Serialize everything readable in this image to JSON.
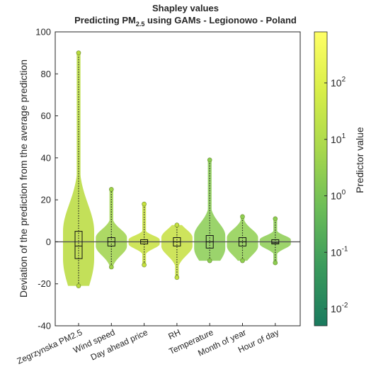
{
  "chart_data": {
    "type": "violin",
    "title": "Shapley values",
    "subtitle_main": "Predicting PM",
    "subtitle_sub": "2.5",
    "subtitle_rest": " using GAMs - Legionowo - Poland",
    "xlabel": "",
    "ylabel": "Deviation of the prediction from the average prediction",
    "ylim": [
      -40,
      100
    ],
    "yticks": [
      -40,
      -20,
      0,
      20,
      40,
      60,
      80,
      100
    ],
    "reference_line_y": 0,
    "grid": false,
    "categories": [
      "Zegrzynska PM2.5",
      "Wind speed",
      "Day ahead price",
      "RH",
      "Temperature",
      "Month of year",
      "Hour of day"
    ],
    "violins": [
      {
        "category": "Zegrzynska PM2.5",
        "min": -21,
        "q1": -8,
        "median": -2,
        "q3": 5,
        "max": 90,
        "color": "#b9da3c"
      },
      {
        "category": "Wind speed",
        "min": -12,
        "q1": -2,
        "median": 0,
        "q3": 2,
        "max": 25,
        "color": "#9fd24a"
      },
      {
        "category": "Day ahead price",
        "min": -11,
        "q1": -1,
        "median": 0,
        "q3": 1,
        "max": 18,
        "color": "#c7e03d"
      },
      {
        "category": "RH",
        "min": -17,
        "q1": -2,
        "median": 0,
        "q3": 2,
        "max": 8,
        "color": "#c5df3f"
      },
      {
        "category": "Temperature",
        "min": -9,
        "q1": -3,
        "median": 0,
        "q3": 3,
        "max": 39,
        "color": "#8acd52"
      },
      {
        "category": "Month of year",
        "min": -9,
        "q1": -2,
        "median": 0,
        "q3": 2,
        "max": 12,
        "color": "#8fcf50"
      },
      {
        "category": "Hour of day",
        "min": -10,
        "q1": -1,
        "median": -0.5,
        "q3": 1,
        "max": 11,
        "color": "#8ccd51"
      }
    ],
    "colorbar": {
      "label": "Predictor value",
      "scale": "log",
      "range": [
        0.005,
        800
      ],
      "tick_bases": [
        "10",
        "10",
        "10",
        "10",
        "10"
      ],
      "tick_exponents": [
        "-2",
        "-1",
        "0",
        "1",
        "2"
      ],
      "tick_values": [
        0.01,
        0.1,
        1,
        10,
        100
      ],
      "colormap": [
        "#1a7a5e",
        "#3a9a5c",
        "#6cbd58",
        "#a8d84c",
        "#d8ee48",
        "#ffff66"
      ]
    }
  }
}
